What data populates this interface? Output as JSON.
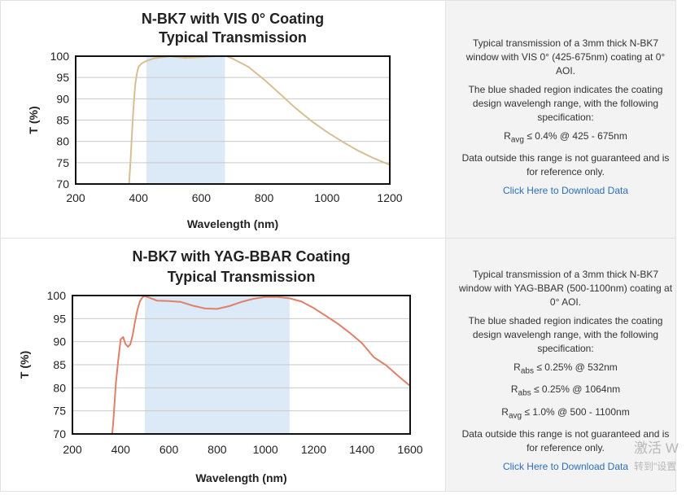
{
  "chart_data": [
    {
      "type": "line",
      "title": [
        "N-BK7 with VIS 0° Coating",
        "Typical Transmission"
      ],
      "xlabel": "Wavelength (nm)",
      "ylabel": "T (%)",
      "xlim": [
        200,
        1200
      ],
      "ylim": [
        70,
        100
      ],
      "xticks": [
        200,
        400,
        600,
        800,
        1000,
        1200
      ],
      "yticks": [
        70,
        75,
        80,
        85,
        90,
        95,
        100
      ],
      "grid": true,
      "line_color": "#d8bf93",
      "shade_color": "#dce9f6",
      "shaded_range": [
        425,
        675
      ],
      "series": [
        {
          "x": [
            370,
            375,
            380,
            385,
            390,
            395,
            400,
            410,
            420,
            430,
            450,
            480,
            500,
            550,
            600,
            650,
            680,
            700,
            750,
            800,
            850,
            900,
            950,
            1000,
            1050,
            1100,
            1150,
            1200
          ],
          "y": [
            70,
            76,
            83,
            89,
            93.5,
            96,
            97.5,
            98.3,
            98.7,
            99.0,
            99.5,
            99.8,
            100,
            99.6,
            99.8,
            100,
            100,
            99.4,
            97.5,
            94.5,
            91.2,
            87.8,
            84.8,
            82.2,
            79.9,
            77.8,
            76.0,
            74.5
          ]
        }
      ]
    },
    {
      "type": "line",
      "title": [
        "N-BK7 with YAG-BBAR Coating",
        "Typical Transmission"
      ],
      "xlabel": "Wavelength (nm)",
      "ylabel": "T (%)",
      "xlim": [
        200,
        1600
      ],
      "ylim": [
        70,
        100
      ],
      "xticks": [
        200,
        400,
        600,
        800,
        1000,
        1200,
        1400,
        1600
      ],
      "yticks": [
        70,
        75,
        80,
        85,
        90,
        95,
        100
      ],
      "grid": true,
      "line_color": "#e0806a",
      "shade_color": "#dce9f6",
      "shaded_range": [
        500,
        1100
      ],
      "series": [
        {
          "x": [
            365,
            370,
            375,
            380,
            390,
            400,
            410,
            420,
            430,
            440,
            450,
            460,
            470,
            480,
            490,
            500,
            520,
            550,
            600,
            650,
            700,
            750,
            800,
            850,
            900,
            950,
            1000,
            1050,
            1100,
            1150,
            1200,
            1250,
            1300,
            1350,
            1400,
            1450,
            1500,
            1550,
            1600
          ],
          "y": [
            70,
            73,
            77,
            81,
            86,
            90.5,
            91.0,
            89.5,
            88.9,
            89.4,
            91.5,
            94.5,
            97.0,
            98.8,
            99.6,
            99.9,
            99.5,
            98.9,
            98.8,
            98.6,
            97.8,
            97.2,
            97.1,
            97.7,
            98.6,
            99.3,
            99.7,
            99.7,
            99.4,
            98.7,
            97.3,
            95.6,
            93.9,
            91.9,
            89.7,
            86.6,
            84.9,
            82.6,
            80.4
          ]
        }
      ]
    }
  ],
  "descriptions": [
    {
      "intro": "Typical transmission of a 3mm thick N-BK7 window with VIS 0° (425-675nm) coating at 0° AOI.",
      "shaded_note": "The blue shaded region indicates the coating design wavelengh range, with the following specification:",
      "specs": [
        {
          "sym": "R",
          "sub": "avg",
          "rest": "≤ 0.4% @ 425 - 675nm"
        }
      ],
      "disclaimer": "Data outside this range is not guaranteed and is for reference only.",
      "link": "Click Here to Download Data"
    },
    {
      "intro": "Typical transmission of a 3mm thick N-BK7 window with YAG-BBAR (500-1100nm) coating at 0° AOI.",
      "shaded_note": "The blue shaded region indicates the coating design wavelengh range, with the following specification:",
      "specs": [
        {
          "sym": "R",
          "sub": "abs",
          "rest": "≤ 0.25% @ 532nm"
        },
        {
          "sym": "R",
          "sub": "abs",
          "rest": "≤ 0.25% @ 1064nm"
        },
        {
          "sym": "R",
          "sub": "avg",
          "rest": "≤ 1.0% @ 500 - 1100nm"
        }
      ],
      "disclaimer": "Data outside this range is not guaranteed and is for reference only.",
      "link": "Click Here to Download Data"
    }
  ],
  "watermark": {
    "line1": "激活 W",
    "line2": "转到\"设置"
  }
}
